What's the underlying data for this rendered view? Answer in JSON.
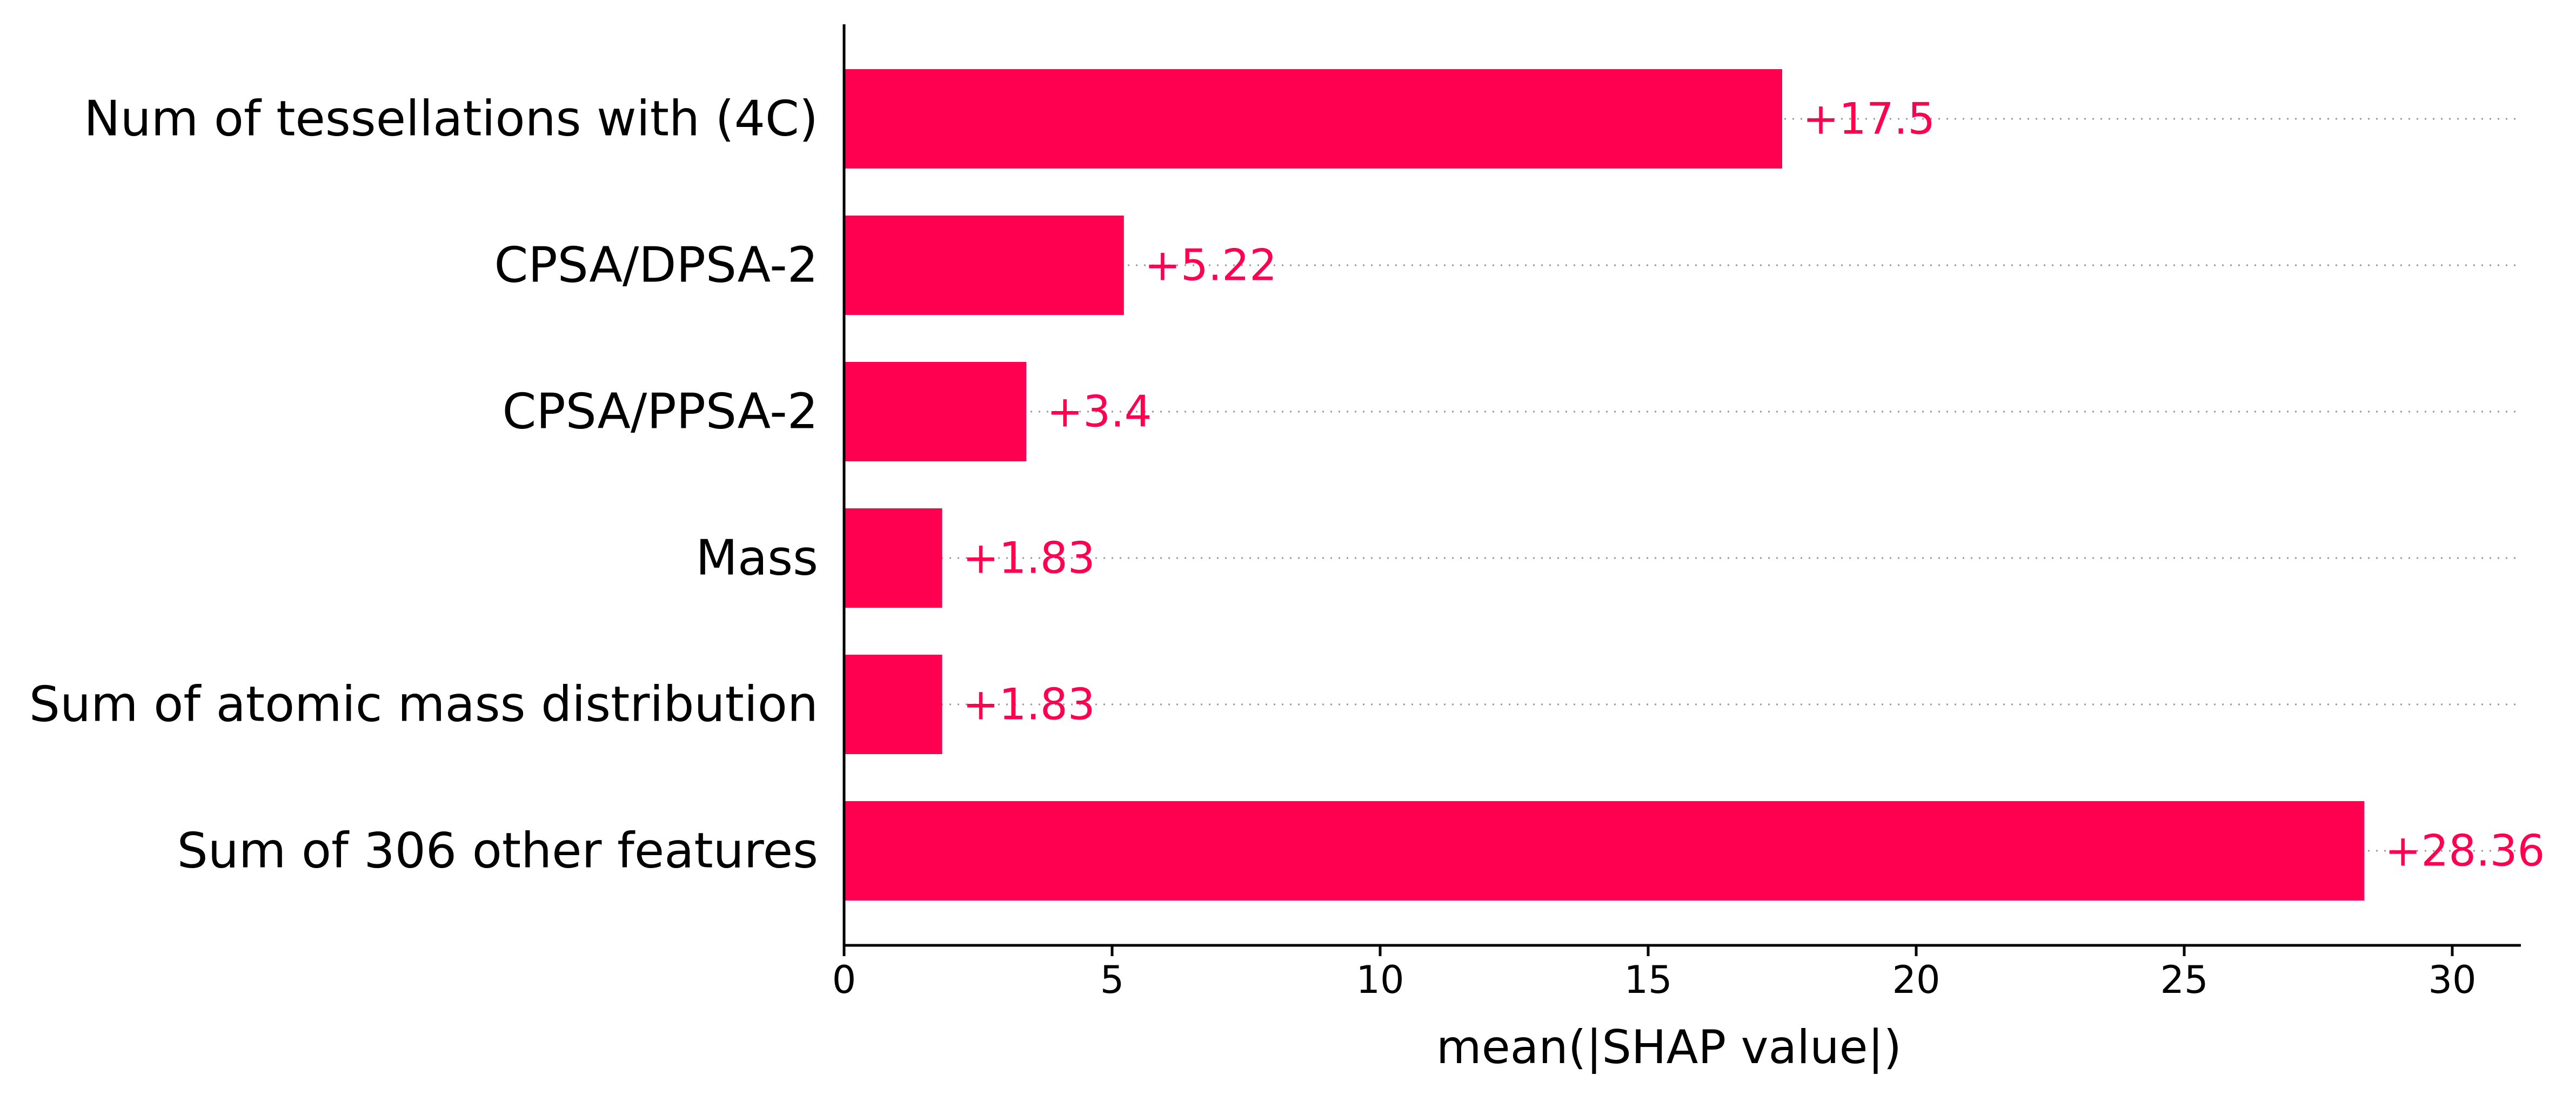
{
  "chart_data": {
    "type": "bar",
    "orientation": "horizontal",
    "categories": [
      "Num of tessellations with (4C)",
      "CPSA/DPSA-2",
      "CPSA/PPSA-2",
      "Mass",
      "Sum of atomic mass distribution",
      "Sum of 306 other features"
    ],
    "values": [
      17.5,
      5.22,
      3.4,
      1.83,
      1.83,
      28.36
    ],
    "value_labels": [
      "+17.5",
      "+5.22",
      "+3.4",
      "+1.83",
      "+1.83",
      "+28.36"
    ],
    "xlabel": "mean(|SHAP value|)",
    "ylabel": "",
    "title": "",
    "xlim": [
      0,
      31.3
    ],
    "xticks": [
      0,
      5,
      10,
      15,
      20,
      25,
      30
    ],
    "xtick_labels": [
      "0",
      "5",
      "10",
      "15",
      "20",
      "25",
      "30"
    ],
    "bar_color": "#ff0051",
    "grid": "dotted row guides",
    "legend": "none"
  }
}
